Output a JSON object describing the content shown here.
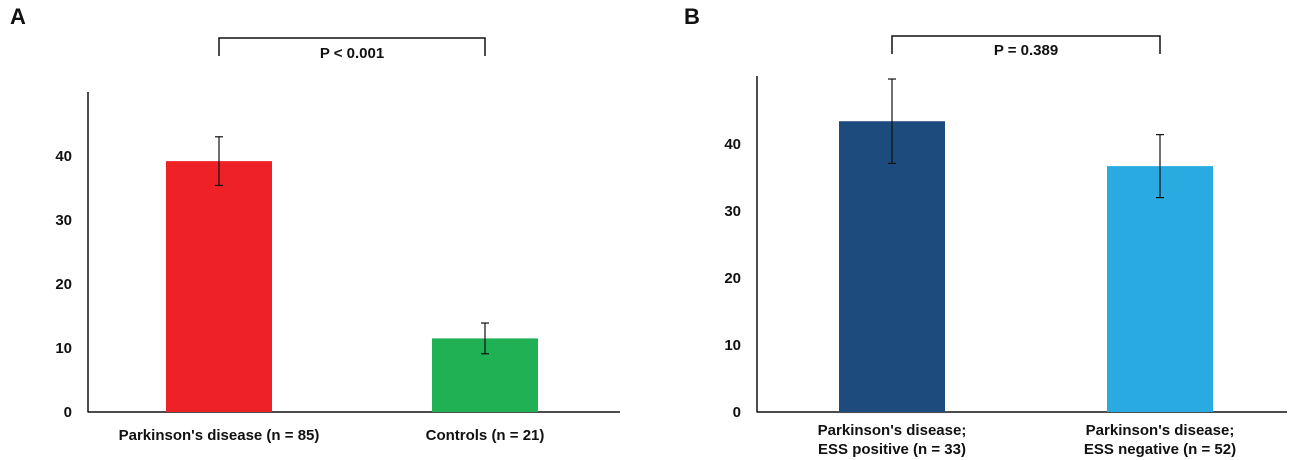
{
  "chart_data": [
    {
      "panel": "A",
      "type": "bar",
      "categories": [
        [
          "Parkinson's disease  (n = 85)"
        ],
        [
          "Controls (n = 21)"
        ]
      ],
      "values": [
        39.2,
        11.5
      ],
      "errors": [
        3.8,
        2.4
      ],
      "colors": [
        "#ee2226",
        "#1fb154"
      ],
      "yticks": [
        0,
        10,
        20,
        30,
        40
      ],
      "ylim": [
        0,
        50
      ],
      "significance": {
        "label": "P < 0.001",
        "between": [
          0,
          1
        ]
      },
      "title": "",
      "xlabel": "",
      "ylabel": "",
      "grid": false
    },
    {
      "panel": "B",
      "type": "bar",
      "categories": [
        [
          "Parkinson's disease;",
          "ESS positive (n = 33)"
        ],
        [
          "Parkinson's disease;",
          "ESS negative (n = 52)"
        ]
      ],
      "values": [
        43.4,
        36.7
      ],
      "errors": [
        6.3,
        4.7
      ],
      "colors": [
        "#1d4b7e",
        "#29abe2"
      ],
      "yticks": [
        0,
        10,
        20,
        30,
        40
      ],
      "ylim": [
        0,
        50
      ],
      "significance": {
        "label": "P = 0.389",
        "between": [
          0,
          1
        ]
      },
      "title": "",
      "xlabel": "",
      "ylabel": "",
      "grid": false
    }
  ]
}
